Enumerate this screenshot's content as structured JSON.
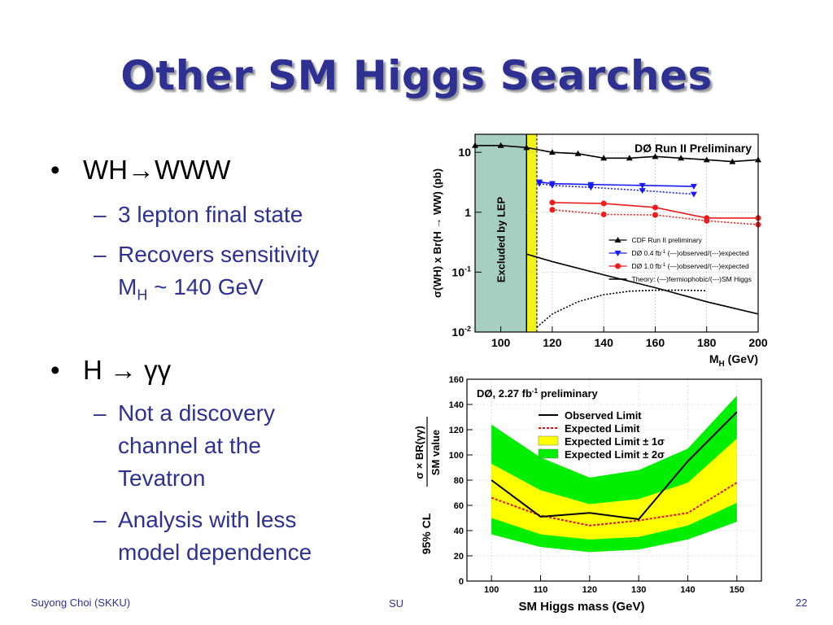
{
  "slide": {
    "title": "Other SM Higgs Searches",
    "bullets": [
      {
        "text": "WH→WWW",
        "subs": [
          "3 lepton final state",
          "Recovers sensitivity",
          "M",
          "H",
          " ~ 140 GeV"
        ]
      },
      {
        "text": "H → γγ",
        "subs": [
          "Not a discovery",
          "channel at the",
          "Tevatron",
          "Analysis with less",
          "model dependence"
        ]
      }
    ],
    "footer": {
      "author": "Suyong Choi (SKKU)",
      "center": "SU",
      "page": "22"
    }
  },
  "chart_data": [
    {
      "type": "line",
      "title": "DØ Run II Preliminary",
      "xlabel_main": "M",
      "xlabel_sub": "H",
      "xlabel_unit": " (GeV)",
      "ylabel": "σ(WH) x Br(H → WW) (pb)",
      "log_y": true,
      "xlim": [
        90,
        200
      ],
      "ylim": [
        0.01,
        20
      ],
      "x_ticks": [
        100,
        120,
        140,
        160,
        180,
        200
      ],
      "y_ticks": [
        {
          "value": 10,
          "base": "10",
          "exp": ""
        },
        {
          "value": 1,
          "base": "1",
          "exp": ""
        },
        {
          "value": 0.1,
          "base": "10",
          "exp": "-1"
        },
        {
          "value": 0.01,
          "base": "10",
          "exp": "-2"
        }
      ],
      "excluded_region": {
        "x": [
          90,
          110
        ],
        "label": "Excluded by LEP",
        "color": "#a6cfc2"
      },
      "band_region": {
        "x": [
          110,
          114
        ],
        "color": "#f2f21a"
      },
      "series": [
        {
          "name": "CDF Run II preliminary",
          "color": "#000000",
          "style": "solid",
          "marker": "triangle-up",
          "x": [
            90,
            100,
            110,
            120,
            130,
            140,
            150,
            160,
            170,
            180,
            190,
            200
          ],
          "y": [
            13,
            13,
            12,
            10,
            9.5,
            8,
            8,
            8.5,
            8,
            7.5,
            7,
            7.5
          ]
        },
        {
          "name": "DØ 0.4 fb⁻¹ (—)observed",
          "color": "#1a1aff",
          "style": "solid",
          "marker": "triangle-down",
          "x": [
            115,
            120,
            135,
            155,
            175
          ],
          "y": [
            3.2,
            3.0,
            2.9,
            2.8,
            2.7
          ]
        },
        {
          "name": "DØ 0.4 fb⁻¹ expected",
          "color": "#1a1aff",
          "style": "dotted",
          "marker": "triangle-down",
          "x": [
            115,
            120,
            135,
            155,
            175
          ],
          "y": [
            3.0,
            2.8,
            2.6,
            2.3,
            2.0
          ]
        },
        {
          "name": "DØ 1.0 fb⁻¹ (—)observed",
          "color": "#ee1c1c",
          "style": "solid",
          "marker": "circle",
          "x": [
            120,
            140,
            160,
            180,
            200
          ],
          "y": [
            1.45,
            1.4,
            1.2,
            0.8,
            0.8
          ]
        },
        {
          "name": "DØ 1.0 fb⁻¹ expected",
          "color": "#ee1c1c",
          "style": "dotted",
          "marker": "circle",
          "x": [
            120,
            140,
            160,
            180,
            200
          ],
          "y": [
            1.1,
            0.92,
            0.9,
            0.72,
            0.62
          ]
        },
        {
          "name": "Theory fermiophobic",
          "color": "#000000",
          "style": "solid",
          "marker": "none",
          "x": [
            110,
            120,
            140,
            160,
            180,
            200
          ],
          "y": [
            0.2,
            0.15,
            0.09,
            0.055,
            0.032,
            0.02
          ]
        },
        {
          "name": "Theory SM Higgs",
          "color": "#000000",
          "style": "dotted",
          "marker": "none",
          "x": [
            114,
            120,
            130,
            140,
            150,
            160,
            170,
            180
          ],
          "y": [
            0.012,
            0.02,
            0.032,
            0.042,
            0.048,
            0.05,
            0.05,
            0.049
          ]
        }
      ],
      "legend": [
        {
          "text": "CDF Run II preliminary",
          "color": "#000000",
          "marker": "triangle-up",
          "sup": "",
          "rest": ""
        },
        {
          "text": "DØ 0.4 fb",
          "color": "#1a1aff",
          "marker": "triangle-down",
          "sup": "-1",
          "rest": " (—)observed/(---)expected"
        },
        {
          "text": "DØ 1.0 fb",
          "color": "#ee1c1c",
          "marker": "circle",
          "sup": "-1",
          "rest": " (—)observed/(---)expected"
        },
        {
          "text": "Theory: (—)fermiophobic/(---)SM Higgs",
          "color": "#000000",
          "marker": "line",
          "sup": "",
          "rest": ""
        }
      ]
    },
    {
      "type": "line",
      "title_main": "DØ, 2.27 fb",
      "title_sup": "-1",
      "title_rest": " preliminary",
      "xlabel": "SM Higgs mass (GeV)",
      "ylabel_prefix": "95% CL",
      "ylabel_num": "σ × BR(γγ)",
      "ylabel_den": "SM value",
      "xlim": [
        95,
        155
      ],
      "ylim": [
        0,
        160
      ],
      "x_ticks": [
        100,
        110,
        120,
        130,
        140,
        150
      ],
      "y_ticks": [
        0,
        20,
        40,
        60,
        80,
        100,
        120,
        140,
        160
      ],
      "x": [
        100,
        110,
        120,
        130,
        140,
        150
      ],
      "band_2sigma": {
        "lower": [
          37,
          27,
          23,
          25,
          33,
          47
        ],
        "upper": [
          124,
          98,
          82,
          88,
          105,
          147
        ],
        "color": "#00ee00"
      },
      "band_1sigma": {
        "lower": [
          50,
          37,
          33,
          35,
          44,
          62
        ],
        "upper": [
          93,
          72,
          61,
          65,
          78,
          113
        ],
        "color": "#ffff00"
      },
      "observed": {
        "name": "Observed Limit",
        "values": [
          80,
          51,
          54,
          49,
          95,
          134
        ],
        "color": "#000000"
      },
      "expected": {
        "name": "Expected Limit",
        "values": [
          66,
          52,
          44,
          48,
          54,
          78
        ],
        "color": "#dd1111"
      },
      "legend": [
        {
          "text": "Observed Limit",
          "kind": "line",
          "color": "#000000"
        },
        {
          "text": "Expected Limit",
          "kind": "dotted",
          "color": "#dd1111"
        },
        {
          "text": "Expected Limit ± 1σ",
          "kind": "box",
          "color": "#ffff00"
        },
        {
          "text": "Expected Limit ± 2σ",
          "kind": "box",
          "color": "#00ee00"
        }
      ]
    }
  ]
}
